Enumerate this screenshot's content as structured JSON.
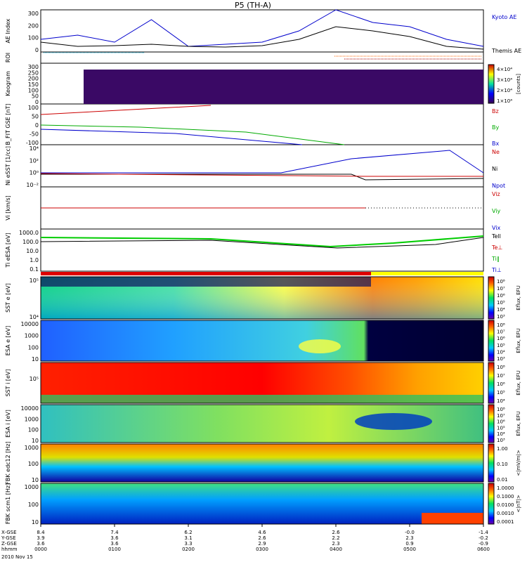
{
  "title": "P5 (TH-A)",
  "date_label": "2010 Nov 15",
  "chart_data": [
    {
      "type": "line",
      "panel": "ae-index",
      "ylabel": "AE Index",
      "ylim": [
        0,
        300
      ],
      "yticks": [
        "300",
        "200",
        "100",
        "0"
      ],
      "legend": [
        "Kyoto AE",
        "Themis AE"
      ],
      "colors": [
        "#0000cc",
        "#000000"
      ],
      "x_hours": [
        0,
        0.5,
        1,
        1.5,
        2,
        2.5,
        3,
        3.5,
        4,
        4.5,
        5,
        5.5,
        6
      ],
      "series": [
        {
          "name": "Kyoto AE",
          "values": [
            90,
            120,
            70,
            230,
            40,
            55,
            70,
            150,
            300,
            210,
            180,
            90,
            40
          ]
        },
        {
          "name": "Themis AE",
          "values": [
            70,
            40,
            45,
            55,
            40,
            35,
            45,
            90,
            180,
            150,
            110,
            40,
            20
          ]
        }
      ]
    },
    {
      "type": "heatmap",
      "panel": "roi",
      "ylabel": "ROI",
      "note_bars": [
        "#00b0e0",
        "#ff6600",
        "#aa0000"
      ]
    },
    {
      "type": "heatmap",
      "panel": "keogram",
      "ylabel": "Keogram",
      "ylim": [
        0,
        300
      ],
      "yticks": [
        "300",
        "250",
        "200",
        "150",
        "100",
        "50",
        "0"
      ],
      "colorbar_ticks": [
        "4×10⁴",
        "3×10⁴",
        "2×10⁴",
        "1×10⁴"
      ],
      "colorbar_label": "[counts]"
    },
    {
      "type": "line",
      "panel": "b-field",
      "ylabel": "B_FIT GSE [nT]",
      "ylim": [
        -100,
        100
      ],
      "yticks": [
        "100",
        "50",
        "0",
        "-50",
        "-100"
      ],
      "legend": [
        "Bz",
        "By",
        "Bx"
      ],
      "colors": [
        "#cc0000",
        "#00aa00",
        "#0000cc"
      ]
    },
    {
      "type": "line",
      "panel": "density",
      "ylabel": "Ni eSST [1/cc]",
      "yticks": [
        "10⁴",
        "10²",
        "10⁰",
        "10⁻²"
      ],
      "legend": [
        "Ne",
        "Ni",
        "Npot"
      ],
      "colors": [
        "#cc0000",
        "#000000",
        "#0000cc"
      ]
    },
    {
      "type": "line",
      "panel": "velocity",
      "ylabel": "Vi [km/s]",
      "legend": [
        "Viz",
        "Viy",
        "Vix"
      ],
      "colors": [
        "#cc0000",
        "#00aa00",
        "#0000cc"
      ]
    },
    {
      "type": "line",
      "panel": "temperature",
      "ylabel": "Ti eESA [eV]",
      "yticks": [
        "1000.0",
        "100.0",
        "10.0",
        "1.0",
        "0.1"
      ],
      "legend": [
        "Tell",
        "Te⊥",
        "Ti‖",
        "Ti⊥"
      ],
      "colors": [
        "#000000",
        "#cc0000",
        "#00aa00",
        "#0000cc"
      ]
    },
    {
      "type": "heatmap",
      "panel": "sst-electron",
      "ylabel": "SST e [eV]",
      "yticks": [
        "10⁵",
        "10⁴"
      ],
      "colorbar_ticks": [
        "10⁸",
        "10⁷",
        "10⁶",
        "10⁵",
        "10⁴",
        "10³"
      ],
      "colorbar_label": "Eflux, EFU"
    },
    {
      "type": "heatmap",
      "panel": "esa-electron",
      "ylabel": "ESA e [eV]",
      "yticks": [
        "10000",
        "1000",
        "100",
        "10"
      ],
      "colorbar_ticks": [
        "10⁸",
        "10⁷",
        "10⁶",
        "10⁵",
        "10⁴",
        "10³"
      ],
      "colorbar_label": "Eflux, EFU"
    },
    {
      "type": "heatmap",
      "panel": "sst-ion",
      "ylabel": "SST i [eV]",
      "yticks": [
        "10⁵"
      ],
      "colorbar_ticks": [
        "10⁸",
        "10⁷",
        "10⁶",
        "10⁵",
        "10⁴"
      ],
      "colorbar_label": "Eflux, EFU"
    },
    {
      "type": "heatmap",
      "panel": "esa-ion",
      "ylabel": "ESA i [eV]",
      "yticks": [
        "10000",
        "1000",
        "100",
        "10"
      ],
      "colorbar_ticks": [
        "10⁸",
        "10⁷",
        "10⁶",
        "10⁵",
        "10⁴",
        "10³"
      ],
      "colorbar_label": "Eflux, EFU"
    },
    {
      "type": "heatmap",
      "panel": "fbk-e12",
      "ylabel": "FBK edc12 [Hz]",
      "yticks": [
        "1000",
        "100",
        "10"
      ],
      "colorbar_ticks": [
        "1.00",
        "0.10",
        "0.01"
      ],
      "colorbar_label": "<|mV/m|>"
    },
    {
      "type": "heatmap",
      "panel": "fbk-scm",
      "ylabel": "FBK scm1 [Hz]",
      "yticks": [
        "1000",
        "100",
        "10"
      ],
      "colorbar_ticks": [
        "1.0000",
        "0.1000",
        "0.0100",
        "0.0010",
        "0.0001"
      ],
      "colorbar_label": "<|nT|>"
    }
  ],
  "x_axis": {
    "row_labels": [
      "X-GSE",
      "Y-GSE",
      "Z-GSE",
      "hhmm"
    ],
    "ticks": [
      {
        "x": "8.4",
        "y": "3.9",
        "z": "3.6",
        "t": "0000"
      },
      {
        "x": "7.4",
        "y": "3.6",
        "z": "3.6",
        "t": "0100"
      },
      {
        "x": "6.2",
        "y": "3.1",
        "z": "3.3",
        "t": "0200"
      },
      {
        "x": "4.6",
        "y": "2.6",
        "z": "2.9",
        "t": "0300"
      },
      {
        "x": "2.6",
        "y": "2.2",
        "z": "2.3",
        "t": "0400"
      },
      {
        "x": "-0.0",
        "y": "2.3",
        "z": "0.9",
        "t": "0500"
      },
      {
        "x": "-1.4",
        "y": "-0.2",
        "z": "-0.9",
        "t": "0600"
      }
    ]
  }
}
